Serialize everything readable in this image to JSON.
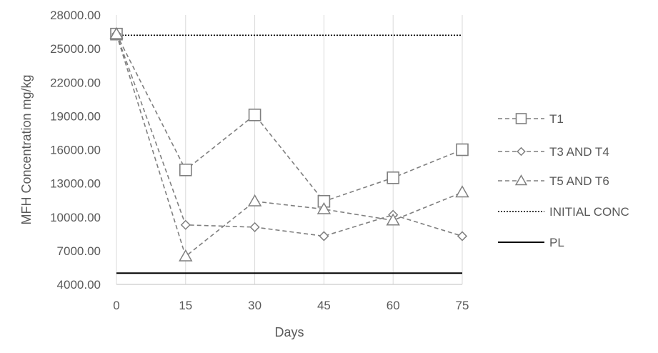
{
  "chart_data": {
    "type": "line",
    "xlabel": "Days",
    "ylabel": "MFH Concentration mg/kg",
    "x": [
      0,
      15,
      30,
      45,
      60,
      75
    ],
    "xticks": [
      "0",
      "15",
      "30",
      "45",
      "60",
      "75"
    ],
    "ylim": [
      4000,
      28000
    ],
    "yticks": [
      "4000.00",
      "7000.00",
      "10000.00",
      "13000.00",
      "16000.00",
      "19000.00",
      "22000.00",
      "25000.00",
      "28000.00"
    ],
    "grid": "vertical",
    "legend_position": "right",
    "series": [
      {
        "name": "T1",
        "marker": "square",
        "style": "dashed",
        "color": "#7f7f7f",
        "values": [
          26300,
          14200,
          19100,
          11400,
          13500,
          16000
        ]
      },
      {
        "name": "T3 AND T4",
        "marker": "diamond",
        "style": "dashed",
        "color": "#7f7f7f",
        "values": [
          26300,
          9300,
          9100,
          8300,
          10200,
          8300
        ]
      },
      {
        "name": "T5 AND T6",
        "marker": "triangle",
        "style": "dashed",
        "color": "#7f7f7f",
        "values": [
          26300,
          6500,
          11400,
          10700,
          9700,
          12200
        ]
      },
      {
        "name": "INITIAL CONC",
        "marker": "none",
        "style": "dotted",
        "color": "#000000",
        "values": [
          26200,
          26200,
          26200,
          26200,
          26200,
          26200
        ]
      },
      {
        "name": "PL",
        "marker": "none",
        "style": "solid",
        "color": "#000000",
        "values": [
          5000,
          5000,
          5000,
          5000,
          5000,
          5000
        ]
      }
    ]
  }
}
